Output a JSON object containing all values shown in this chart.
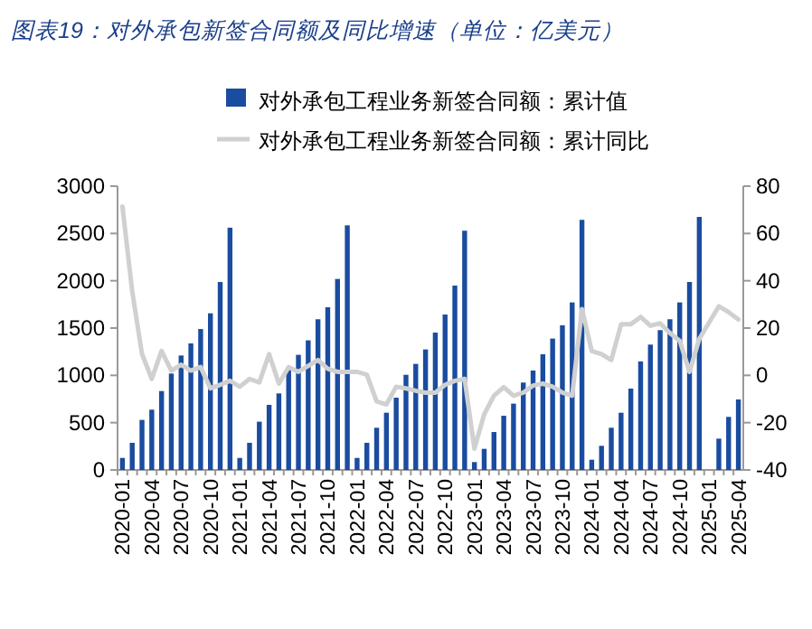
{
  "chart_data": {
    "type": "bar",
    "title": "图表19：对外承包新签合同额及同比增速（单位：亿美元）",
    "categories": [
      "2020-01",
      null,
      null,
      "2020-04",
      null,
      null,
      "2020-07",
      null,
      null,
      "2020-10",
      null,
      null,
      "2021-01",
      null,
      null,
      "2021-04",
      null,
      null,
      "2021-07",
      null,
      null,
      "2021-10",
      null,
      null,
      "2022-01",
      null,
      null,
      "2022-04",
      null,
      null,
      "2022-07",
      null,
      null,
      "2022-10",
      null,
      null,
      "2023-01",
      null,
      null,
      "2023-04",
      null,
      null,
      "2023-07",
      null,
      null,
      "2023-10",
      null,
      null,
      "2024-01",
      null,
      null,
      "2024-04",
      null,
      null,
      "2024-07",
      null,
      null,
      "2024-10",
      null,
      null,
      "2025-01",
      null,
      null,
      "2025-04"
    ],
    "series": [
      {
        "name": "对外承包工程业务新签合同额：累计值",
        "color": "#1a4ca0",
        "values": [
          127,
          287,
          529,
          637,
          834,
          1019,
          1210,
          1338,
          1490,
          1656,
          1987,
          2561,
          127,
          287,
          510,
          688,
          809,
          1083,
          1217,
          1370,
          1593,
          1720,
          2019,
          2586,
          127,
          287,
          446,
          605,
          764,
          1006,
          1121,
          1274,
          1452,
          1643,
          1949,
          2529,
          83,
          223,
          401,
          573,
          701,
          924,
          1051,
          1223,
          1389,
          1529,
          1771,
          2644,
          108,
          255,
          446,
          605,
          860,
          1147,
          1325,
          1478,
          1593,
          1771,
          1987,
          2675,
          null,
          331,
          561,
          745
        ]
      },
      {
        "name": "对外承包工程业务新签合同额：累计同比",
        "type": "line",
        "axis": "y2",
        "color": "#d0d0d0",
        "values": [
          71.4,
          35.5,
          9,
          -1.5,
          10.3,
          2,
          4.5,
          2,
          3.5,
          -5.5,
          -4,
          -2.3,
          -4.8,
          -1.5,
          -3,
          9,
          -3.5,
          3.5,
          1.5,
          4,
          6.5,
          2.8,
          1.5,
          1.5,
          1.5,
          0.3,
          -11,
          -12.3,
          -4.8,
          -5.5,
          -6.5,
          -7.3,
          -7.3,
          -4,
          -2.3,
          -1.5,
          -31,
          -16.5,
          -8.6,
          -5,
          -8.6,
          -7.3,
          -4.3,
          -3.5,
          -4.8,
          -7.3,
          -8.6,
          28,
          10.3,
          9,
          6.5,
          21.6,
          21.6,
          24.7,
          21,
          22,
          17.9,
          14.6,
          1.5,
          15.4,
          null,
          29.2,
          26.7,
          23.6
        ]
      }
    ],
    "ylim": [
      0,
      3000
    ],
    "yticks": [
      0,
      500,
      1000,
      1500,
      2000,
      2500,
      3000
    ],
    "y2lim": [
      -40,
      80
    ],
    "y2ticks": [
      -40,
      -20,
      0,
      20,
      40,
      60,
      80
    ],
    "legend": "top",
    "grid": false
  }
}
